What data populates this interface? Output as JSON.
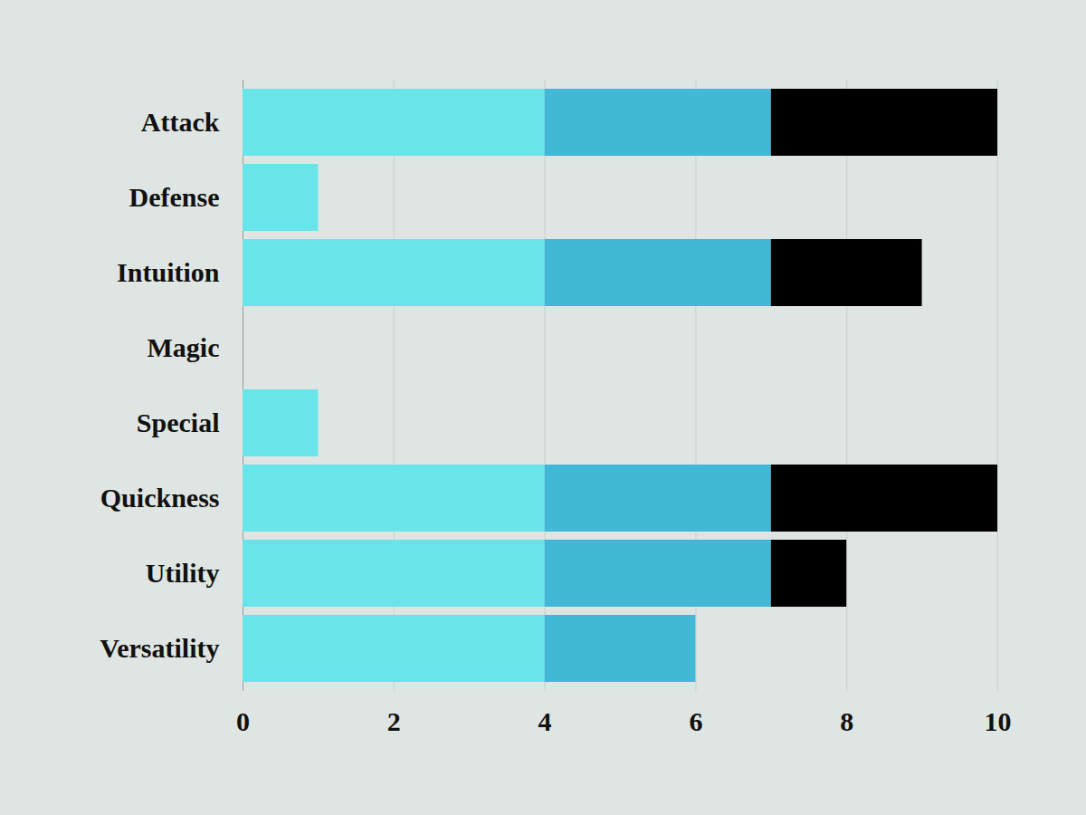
{
  "chart_data": {
    "type": "bar",
    "orientation": "horizontal",
    "stacked": true,
    "grid": true,
    "categories": [
      "Attack",
      "Defense",
      "Intuition",
      "Magic",
      "Special",
      "Quickness",
      "Utility",
      "Versatility"
    ],
    "series": [
      {
        "color": "#69e5ea",
        "values": [
          4,
          1,
          4,
          0,
          1,
          4,
          4,
          4
        ]
      },
      {
        "color": "#41b8d6",
        "values": [
          3,
          0,
          3,
          0,
          0,
          3,
          3,
          2
        ]
      },
      {
        "color": "#000000",
        "values": [
          3,
          0,
          2,
          0,
          0,
          3,
          1,
          0
        ]
      }
    ],
    "xlim": [
      0,
      10
    ],
    "xticks": [
      0,
      2,
      4,
      6,
      8,
      10
    ]
  }
}
